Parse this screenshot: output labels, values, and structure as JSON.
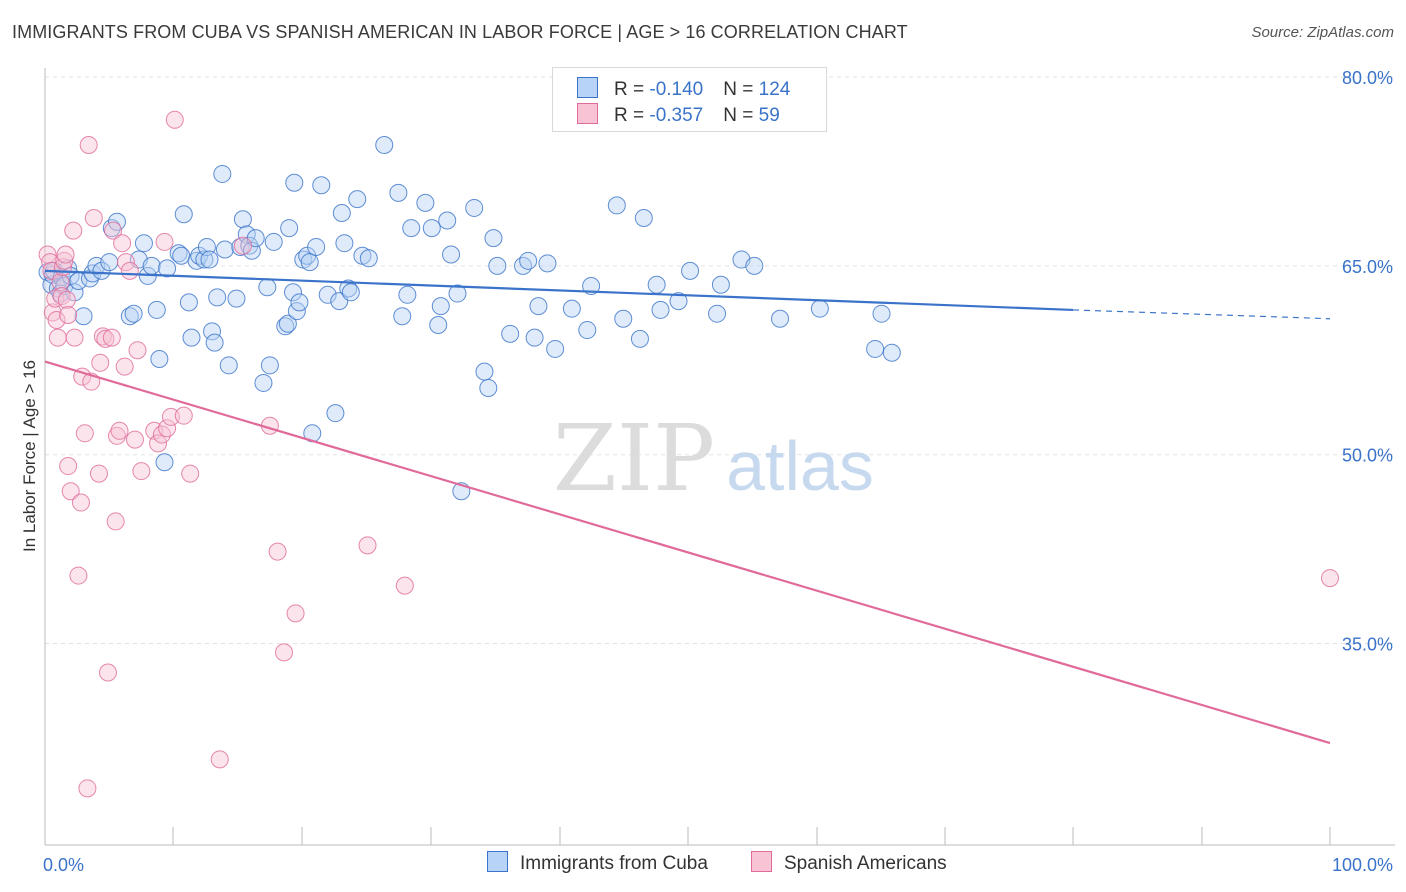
{
  "title": "IMMIGRANTS FROM CUBA VS SPANISH AMERICAN IN LABOR FORCE | AGE > 16 CORRELATION CHART",
  "source": "Source: ZipAtlas.com",
  "watermark": {
    "zip": "ZIP",
    "atlas": "atlas"
  },
  "colors": {
    "blue": "#3a73c9",
    "blue_fill": "#b7d3f5",
    "pink": "#e06a9a",
    "pink_fill": "#f7c3d5",
    "grid": "#e3e3e3"
  },
  "legend_top": {
    "rows": [
      {
        "r_label": "R = ",
        "r_value": "-0.140",
        "n_label": "N = ",
        "n_value": "124"
      },
      {
        "r_label": "R = ",
        "r_value": "-0.357",
        "n_label": "N = ",
        "n_value": "59"
      }
    ]
  },
  "chart_data": {
    "type": "scatter",
    "title": "IMMIGRANTS FROM CUBA VS SPANISH AMERICAN IN LABOR FORCE | AGE > 16 CORRELATION CHART",
    "xlabel": "",
    "ylabel": "In Labor Force | Age > 16",
    "xlim": [
      0,
      100
    ],
    "ylim": [
      19,
      80
    ],
    "x_tick_labels": [
      "0.0%",
      "100.0%"
    ],
    "y_ticks": [
      35,
      50,
      65,
      80
    ],
    "y_tick_labels": [
      "35.0%",
      "50.0%",
      "65.0%",
      "80.0%"
    ],
    "grid": true,
    "legend_position": "bottom",
    "series": [
      {
        "name": "Immigrants from Cuba",
        "color": "#3a73c9",
        "trend": {
          "x0": 0,
          "y0": 64.6,
          "x1": 80,
          "y1": 61.5,
          "dashed_to_x": 100,
          "dashed_to_y": 60.8
        },
        "points": [
          [
            0.2,
            64.5
          ],
          [
            0.5,
            63.5
          ],
          [
            0.6,
            64.3
          ],
          [
            0.7,
            64.6
          ],
          [
            1.0,
            63.2
          ],
          [
            1.2,
            62.8
          ],
          [
            1.3,
            64.1
          ],
          [
            1.5,
            63.4
          ],
          [
            1.8,
            64.8
          ],
          [
            2.0,
            64.2
          ],
          [
            2.3,
            62.9
          ],
          [
            2.6,
            63.8
          ],
          [
            3.0,
            61.0
          ],
          [
            3.5,
            64.0
          ],
          [
            3.7,
            64.4
          ],
          [
            4.0,
            65.0
          ],
          [
            4.4,
            64.6
          ],
          [
            5.0,
            65.3
          ],
          [
            5.2,
            68.0
          ],
          [
            5.6,
            68.5
          ],
          [
            6.6,
            61.0
          ],
          [
            6.9,
            61.2
          ],
          [
            7.3,
            65.5
          ],
          [
            7.7,
            66.8
          ],
          [
            8.0,
            64.2
          ],
          [
            8.3,
            65.0
          ],
          [
            8.7,
            61.5
          ],
          [
            8.9,
            57.6
          ],
          [
            9.3,
            49.4
          ],
          [
            9.5,
            64.8
          ],
          [
            10.4,
            66.0
          ],
          [
            10.6,
            65.8
          ],
          [
            10.8,
            69.1
          ],
          [
            11.2,
            62.1
          ],
          [
            11.4,
            59.3
          ],
          [
            11.8,
            65.4
          ],
          [
            12.0,
            65.8
          ],
          [
            12.4,
            65.5
          ],
          [
            12.6,
            66.5
          ],
          [
            12.8,
            65.5
          ],
          [
            13.0,
            59.8
          ],
          [
            13.2,
            58.9
          ],
          [
            13.4,
            62.5
          ],
          [
            13.8,
            72.3
          ],
          [
            14.0,
            66.3
          ],
          [
            14.3,
            57.1
          ],
          [
            14.9,
            62.4
          ],
          [
            15.2,
            66.5
          ],
          [
            15.4,
            68.7
          ],
          [
            15.7,
            67.5
          ],
          [
            15.9,
            66.6
          ],
          [
            16.1,
            66.2
          ],
          [
            16.4,
            67.2
          ],
          [
            17.0,
            55.7
          ],
          [
            17.3,
            63.3
          ],
          [
            17.5,
            57.1
          ],
          [
            17.8,
            66.9
          ],
          [
            18.7,
            60.2
          ],
          [
            18.9,
            60.4
          ],
          [
            19.0,
            68.0
          ],
          [
            19.3,
            62.9
          ],
          [
            19.4,
            71.6
          ],
          [
            19.6,
            61.4
          ],
          [
            19.8,
            62.1
          ],
          [
            20.1,
            65.5
          ],
          [
            20.4,
            65.8
          ],
          [
            20.6,
            65.3
          ],
          [
            20.8,
            51.7
          ],
          [
            21.1,
            66.5
          ],
          [
            21.5,
            71.4
          ],
          [
            22.0,
            62.7
          ],
          [
            22.6,
            53.3
          ],
          [
            22.9,
            62.2
          ],
          [
            23.1,
            69.2
          ],
          [
            23.3,
            66.8
          ],
          [
            23.6,
            63.2
          ],
          [
            23.8,
            62.9
          ],
          [
            24.3,
            70.3
          ],
          [
            24.7,
            65.8
          ],
          [
            25.2,
            65.6
          ],
          [
            26.4,
            74.6
          ],
          [
            27.5,
            70.8
          ],
          [
            27.8,
            61.0
          ],
          [
            28.2,
            62.7
          ],
          [
            28.5,
            68.0
          ],
          [
            29.6,
            70.0
          ],
          [
            30.1,
            68.0
          ],
          [
            30.6,
            60.3
          ],
          [
            30.8,
            61.8
          ],
          [
            31.3,
            68.6
          ],
          [
            31.6,
            65.9
          ],
          [
            32.1,
            62.8
          ],
          [
            32.4,
            47.1
          ],
          [
            33.4,
            69.6
          ],
          [
            34.2,
            56.6
          ],
          [
            34.5,
            55.3
          ],
          [
            34.9,
            67.2
          ],
          [
            35.2,
            65.0
          ],
          [
            36.2,
            59.6
          ],
          [
            37.2,
            65.0
          ],
          [
            37.6,
            65.4
          ],
          [
            38.1,
            59.3
          ],
          [
            38.4,
            61.8
          ],
          [
            39.1,
            65.2
          ],
          [
            39.7,
            58.4
          ],
          [
            41.0,
            61.6
          ],
          [
            42.2,
            59.9
          ],
          [
            42.5,
            63.4
          ],
          [
            45.0,
            60.8
          ],
          [
            44.5,
            69.8
          ],
          [
            46.6,
            68.8
          ],
          [
            46.3,
            59.2
          ],
          [
            47.6,
            63.5
          ],
          [
            47.9,
            61.5
          ],
          [
            49.3,
            62.2
          ],
          [
            50.2,
            64.6
          ],
          [
            52.3,
            61.2
          ],
          [
            52.6,
            63.5
          ],
          [
            54.2,
            65.5
          ],
          [
            55.2,
            65.0
          ],
          [
            57.2,
            60.8
          ],
          [
            60.3,
            61.6
          ],
          [
            64.6,
            58.4
          ],
          [
            65.1,
            61.2
          ],
          [
            65.9,
            58.1
          ]
        ]
      },
      {
        "name": "Spanish Americans",
        "color": "#e06a9a",
        "trend": {
          "x0": 0,
          "y0": 57.4,
          "x1": 100,
          "y1": 27.1
        },
        "points": [
          [
            0.2,
            65.9
          ],
          [
            0.4,
            65.3
          ],
          [
            0.5,
            64.6
          ],
          [
            0.6,
            61.3
          ],
          [
            0.8,
            62.4
          ],
          [
            0.9,
            60.7
          ],
          [
            1.0,
            59.3
          ],
          [
            1.2,
            63.7
          ],
          [
            1.3,
            62.6
          ],
          [
            1.4,
            64.9
          ],
          [
            1.5,
            65.4
          ],
          [
            1.6,
            65.9
          ],
          [
            1.7,
            62.3
          ],
          [
            1.8,
            61.1
          ],
          [
            1.8,
            49.1
          ],
          [
            2.0,
            47.1
          ],
          [
            2.2,
            67.8
          ],
          [
            2.3,
            59.3
          ],
          [
            2.6,
            40.4
          ],
          [
            2.8,
            46.2
          ],
          [
            2.9,
            56.2
          ],
          [
            3.1,
            51.7
          ],
          [
            3.3,
            23.5
          ],
          [
            3.4,
            74.6
          ],
          [
            3.6,
            55.8
          ],
          [
            3.8,
            68.8
          ],
          [
            4.2,
            48.5
          ],
          [
            4.3,
            57.3
          ],
          [
            4.5,
            59.4
          ],
          [
            4.7,
            59.2
          ],
          [
            4.9,
            32.7
          ],
          [
            5.2,
            59.3
          ],
          [
            5.3,
            67.8
          ],
          [
            5.5,
            44.7
          ],
          [
            5.6,
            51.5
          ],
          [
            5.8,
            51.9
          ],
          [
            6.0,
            66.8
          ],
          [
            6.2,
            57.0
          ],
          [
            6.3,
            65.3
          ],
          [
            6.6,
            64.6
          ],
          [
            7.0,
            51.2
          ],
          [
            7.2,
            58.3
          ],
          [
            7.5,
            48.7
          ],
          [
            8.5,
            51.9
          ],
          [
            8.8,
            50.9
          ],
          [
            9.1,
            51.6
          ],
          [
            9.3,
            66.9
          ],
          [
            9.5,
            52.1
          ],
          [
            9.8,
            53.0
          ],
          [
            10.1,
            76.6
          ],
          [
            10.8,
            53.1
          ],
          [
            11.3,
            48.5
          ],
          [
            13.6,
            25.8
          ],
          [
            15.4,
            66.6
          ],
          [
            17.5,
            52.3
          ],
          [
            18.1,
            42.3
          ],
          [
            18.6,
            34.3
          ],
          [
            19.5,
            37.4
          ],
          [
            25.1,
            42.8
          ],
          [
            28.0,
            39.6
          ],
          [
            100.0,
            40.2
          ]
        ]
      }
    ]
  },
  "legend_bottom": [
    {
      "label": "Immigrants from Cuba"
    },
    {
      "label": "Spanish Americans"
    }
  ]
}
